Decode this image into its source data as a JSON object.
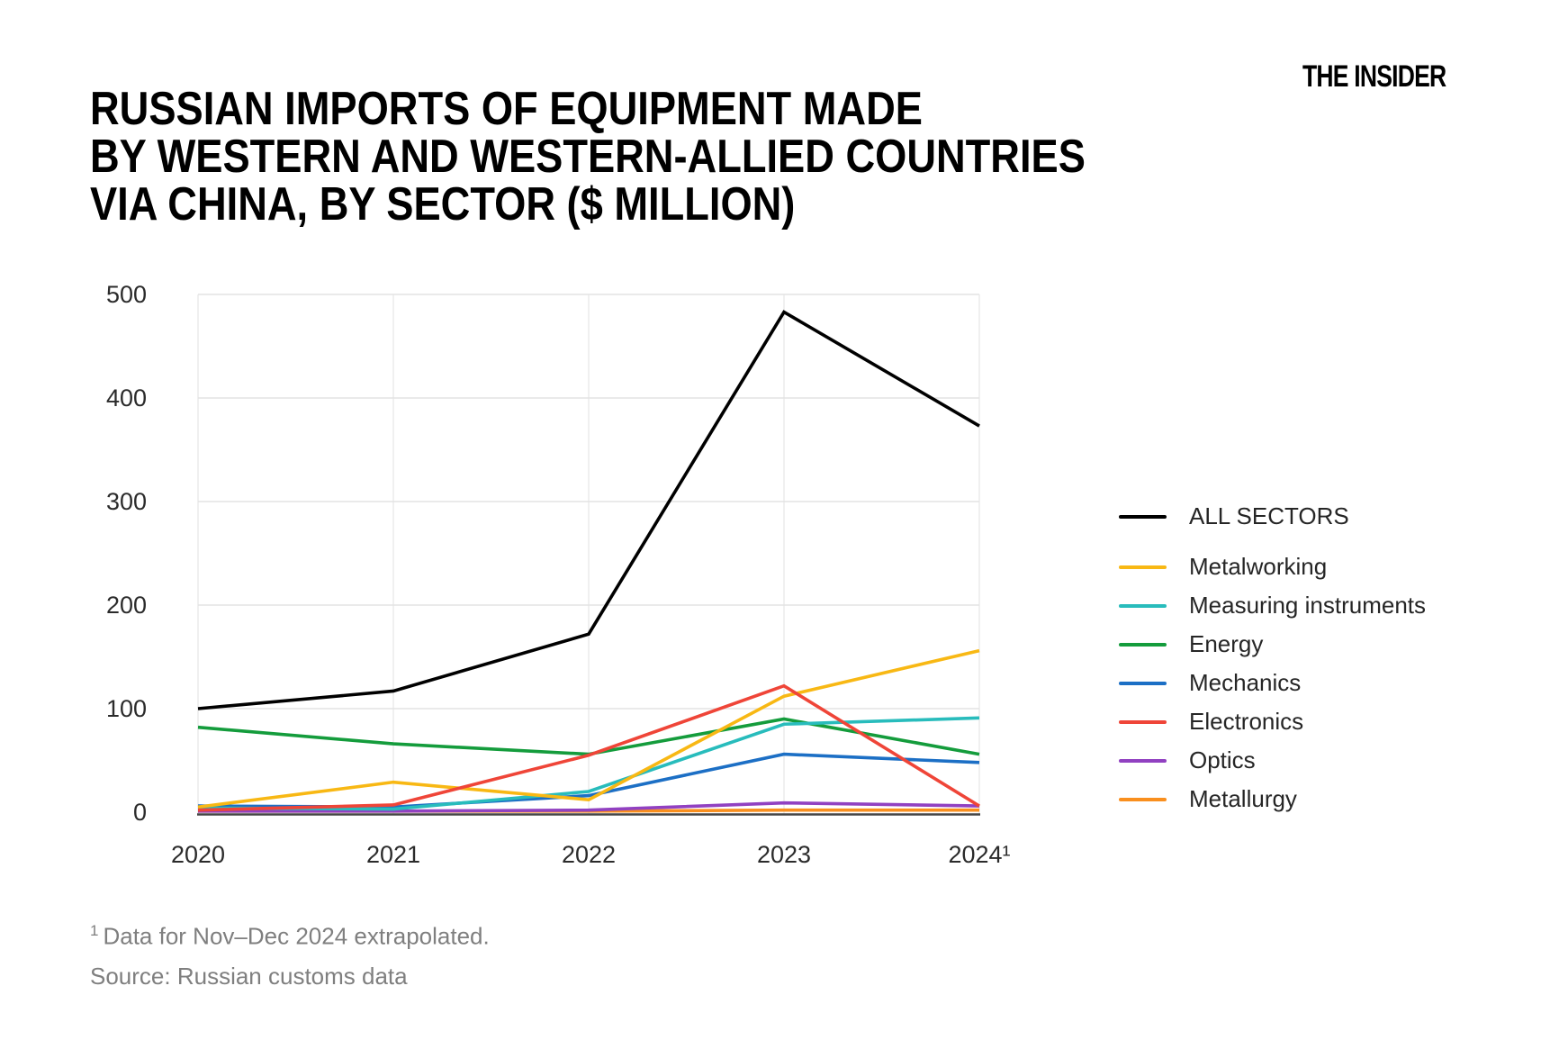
{
  "brand": {
    "logo_text": "THE INSIDER"
  },
  "title": {
    "line1": "RUSSIAN IMPORTS OF EQUIPMENT MADE",
    "line2": "BY WESTERN AND WESTERN-ALLIED COUNTRIES",
    "line3": "VIA CHINA, BY SECTOR ($ MILLION)"
  },
  "footnotes": {
    "note_sup": "1",
    "note_text": "Data for Nov–Dec 2024 extrapolated.",
    "source": "Source: Russian customs data"
  },
  "chart_data": {
    "type": "line",
    "title": "RUSSIAN IMPORTS OF EQUIPMENT MADE BY WESTERN AND WESTERN-ALLIED COUNTRIES VIA CHINA, BY SECTOR ($ MILLION)",
    "xlabel": "",
    "ylabel": "",
    "categories": [
      "2020",
      "2021",
      "2022",
      "2023",
      "2024¹"
    ],
    "y_ticks": [
      0,
      100,
      200,
      300,
      400,
      500
    ],
    "ylim": [
      0,
      500
    ],
    "grid": true,
    "legend_position": "right",
    "series": [
      {
        "name": "ALL SECTORS",
        "color": "#000000",
        "values": [
          100,
          117,
          172,
          483,
          373
        ]
      },
      {
        "name": "Metalworking",
        "color": "#F8B814",
        "values": [
          5,
          29,
          12,
          112,
          156
        ]
      },
      {
        "name": "Measuring instruments",
        "color": "#28BCBC",
        "values": [
          4,
          3,
          20,
          85,
          91
        ]
      },
      {
        "name": "Energy",
        "color": "#149C3C",
        "values": [
          82,
          66,
          56,
          90,
          56
        ]
      },
      {
        "name": "Mechanics",
        "color": "#1C6FC5",
        "values": [
          6,
          5,
          16,
          56,
          48
        ]
      },
      {
        "name": "Electronics",
        "color": "#EF4538",
        "values": [
          2,
          7,
          55,
          122,
          6
        ]
      },
      {
        "name": "Optics",
        "color": "#9141C1",
        "values": [
          1,
          1,
          2,
          9,
          6
        ]
      },
      {
        "name": "Metallurgy",
        "color": "#F98F1E",
        "values": [
          1,
          1,
          1,
          2,
          2
        ]
      }
    ],
    "grid_color": "#e3e3e3",
    "axis_line_color": "#454545",
    "tick_label_color": "#2b2b2b"
  }
}
